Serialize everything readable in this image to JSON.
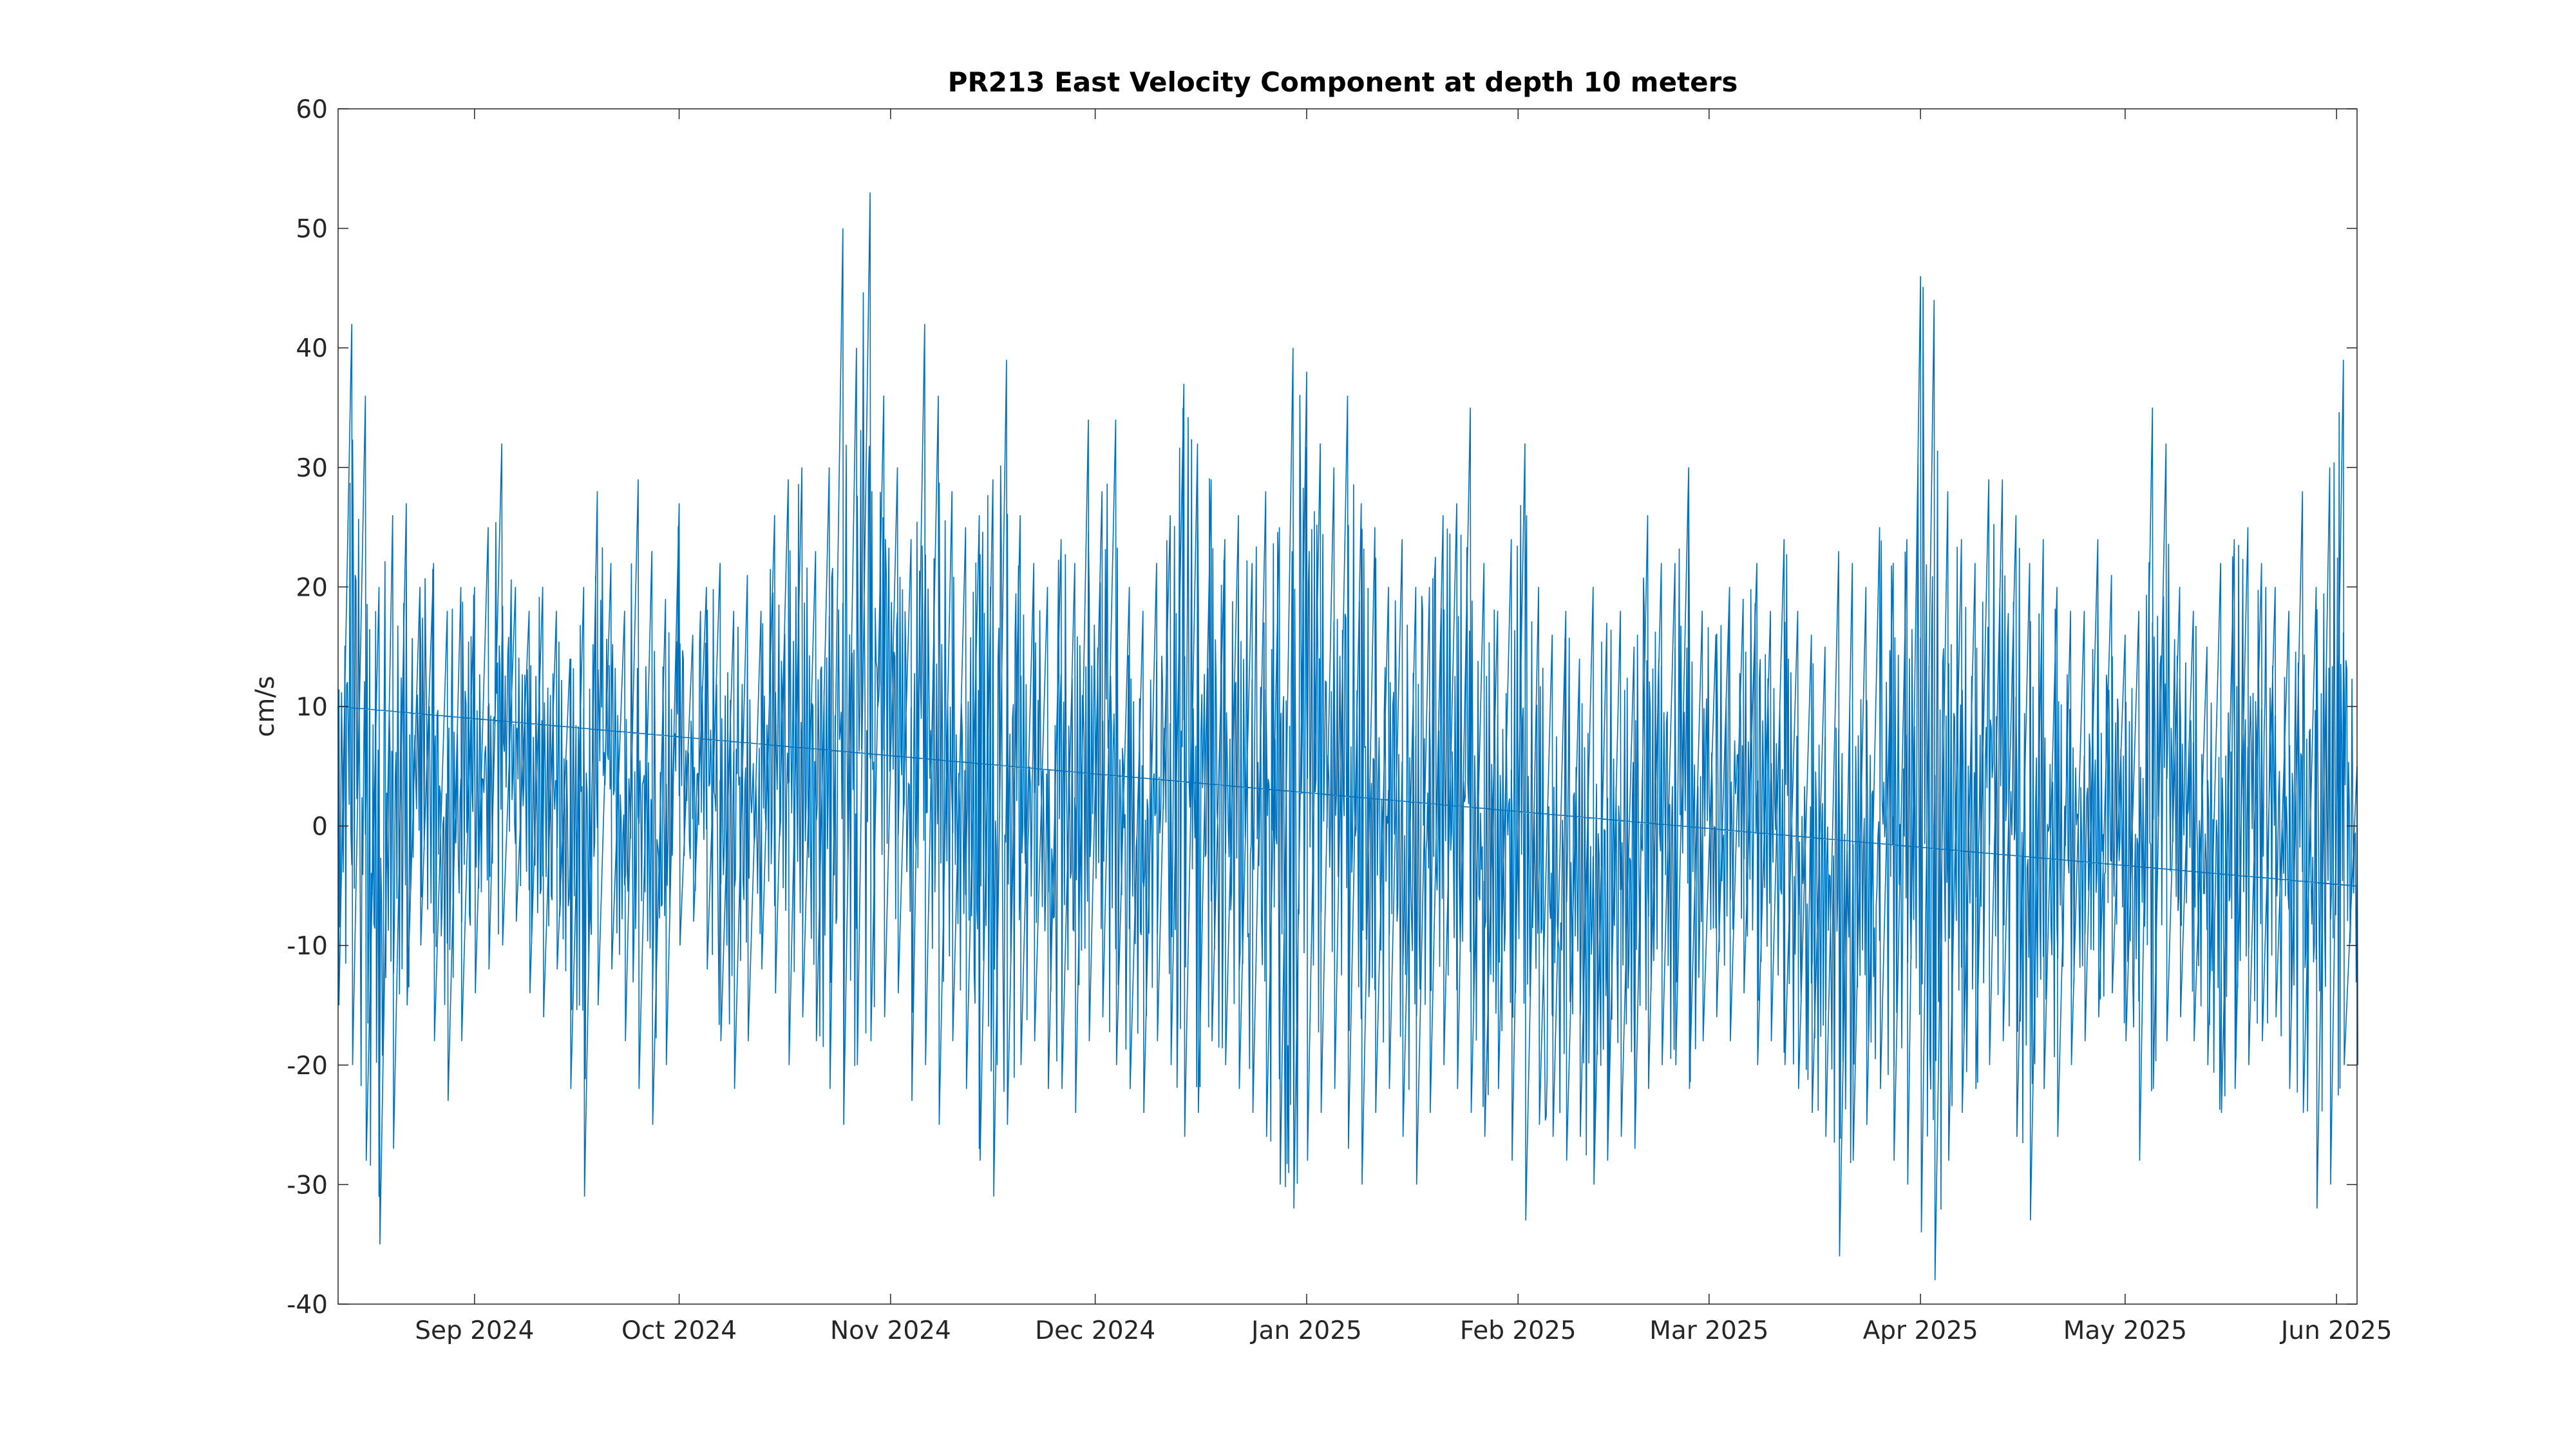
{
  "chart_data": {
    "type": "line",
    "title": "PR213 East Velocity Component at depth 10 meters",
    "xlabel": "",
    "ylabel": "cm/s",
    "ylim": [
      -40,
      60
    ],
    "xlim": [
      "2024-08-12",
      "2025-06-04"
    ],
    "yticks": [
      60,
      50,
      40,
      30,
      20,
      10,
      0,
      -10,
      -20,
      -30,
      -40
    ],
    "xticks": [
      {
        "date": "2024-09-01",
        "label": "Sep 2024"
      },
      {
        "date": "2024-10-01",
        "label": "Oct 2024"
      },
      {
        "date": "2024-11-01",
        "label": "Nov 2024"
      },
      {
        "date": "2024-12-01",
        "label": "Dec 2024"
      },
      {
        "date": "2025-01-01",
        "label": "Jan 2025"
      },
      {
        "date": "2025-02-01",
        "label": "Feb 2025"
      },
      {
        "date": "2025-03-01",
        "label": "Mar 2025"
      },
      {
        "date": "2025-04-01",
        "label": "Apr 2025"
      },
      {
        "date": "2025-05-01",
        "label": "May 2025"
      },
      {
        "date": "2025-06-01",
        "label": "Jun 2025"
      }
    ],
    "grid": false,
    "legend": "none",
    "series": [
      {
        "color": "#0072BD",
        "x": [
          "2024-08-12",
          "2024-08-14",
          "2024-08-16",
          "2024-08-18",
          "2024-08-20",
          "2024-08-22",
          "2024-08-24",
          "2024-08-26",
          "2024-08-28",
          "2024-08-30",
          "2024-09-01",
          "2024-09-03",
          "2024-09-05",
          "2024-09-07",
          "2024-09-09",
          "2024-09-11",
          "2024-09-13",
          "2024-09-15",
          "2024-09-17",
          "2024-09-19",
          "2024-09-21",
          "2024-09-23",
          "2024-09-25",
          "2024-09-27",
          "2024-09-29",
          "2024-10-01",
          "2024-10-03",
          "2024-10-05",
          "2024-10-07",
          "2024-10-09",
          "2024-10-11",
          "2024-10-13",
          "2024-10-15",
          "2024-10-17",
          "2024-10-19",
          "2024-10-21",
          "2024-10-23",
          "2024-10-25",
          "2024-10-27",
          "2024-10-29",
          "2024-10-31",
          "2024-11-02",
          "2024-11-04",
          "2024-11-06",
          "2024-11-08",
          "2024-11-10",
          "2024-11-12",
          "2024-11-14",
          "2024-11-16",
          "2024-11-18",
          "2024-11-20",
          "2024-11-22",
          "2024-11-24",
          "2024-11-26",
          "2024-11-28",
          "2024-11-30",
          "2024-12-02",
          "2024-12-04",
          "2024-12-06",
          "2024-12-08",
          "2024-12-10",
          "2024-12-12",
          "2024-12-14",
          "2024-12-16",
          "2024-12-18",
          "2024-12-20",
          "2024-12-22",
          "2024-12-24",
          "2024-12-26",
          "2024-12-28",
          "2024-12-30",
          "2025-01-01",
          "2025-01-03",
          "2025-01-05",
          "2025-01-07",
          "2025-01-09",
          "2025-01-11",
          "2025-01-13",
          "2025-01-15",
          "2025-01-17",
          "2025-01-19",
          "2025-01-21",
          "2025-01-23",
          "2025-01-25",
          "2025-01-27",
          "2025-01-29",
          "2025-01-31",
          "2025-02-02",
          "2025-02-04",
          "2025-02-06",
          "2025-02-08",
          "2025-02-10",
          "2025-02-12",
          "2025-02-14",
          "2025-02-16",
          "2025-02-18",
          "2025-02-20",
          "2025-02-22",
          "2025-02-24",
          "2025-02-26",
          "2025-02-28",
          "2025-03-02",
          "2025-03-04",
          "2025-03-06",
          "2025-03-08",
          "2025-03-10",
          "2025-03-12",
          "2025-03-14",
          "2025-03-16",
          "2025-03-18",
          "2025-03-20",
          "2025-03-22",
          "2025-03-24",
          "2025-03-26",
          "2025-03-28",
          "2025-03-30",
          "2025-04-01",
          "2025-04-03",
          "2025-04-05",
          "2025-04-07",
          "2025-04-09",
          "2025-04-11",
          "2025-04-13",
          "2025-04-15",
          "2025-04-17",
          "2025-04-19",
          "2025-04-21",
          "2025-04-23",
          "2025-04-25",
          "2025-04-27",
          "2025-04-29",
          "2025-05-01",
          "2025-05-03",
          "2025-05-05",
          "2025-05-07",
          "2025-05-09",
          "2025-05-11",
          "2025-05-13",
          "2025-05-15",
          "2025-05-17",
          "2025-05-19",
          "2025-05-21",
          "2025-05-23",
          "2025-05-25",
          "2025-05-27",
          "2025-05-29",
          "2025-05-31",
          "2025-06-02",
          "2025-06-04"
        ],
        "low": [
          -15,
          -20,
          -28,
          -35,
          -27,
          -15,
          -10,
          -18,
          -23,
          -18,
          -14,
          -12,
          -10,
          -8,
          -14,
          -16,
          -12,
          -22,
          -31,
          -15,
          -12,
          -18,
          -22,
          -25,
          -20,
          -10,
          -8,
          -12,
          -18,
          -22,
          -18,
          -12,
          -14,
          -20,
          -16,
          -18,
          -22,
          -25,
          -20,
          -18,
          -16,
          -14,
          -23,
          -20,
          -25,
          -18,
          -22,
          -28,
          -31,
          -25,
          -20,
          -18,
          -22,
          -22,
          -24,
          -18,
          -16,
          -20,
          -22,
          -24,
          -18,
          -20,
          -26,
          -24,
          -18,
          -20,
          -22,
          -24,
          -26,
          -30,
          -32,
          -28,
          -24,
          -22,
          -27,
          -30,
          -24,
          -22,
          -26,
          -30,
          -24,
          -20,
          -22,
          -24,
          -26,
          -22,
          -28,
          -33,
          -25,
          -26,
          -28,
          -26,
          -30,
          -28,
          -26,
          -27,
          -22,
          -20,
          -20,
          -22,
          -18,
          -16,
          -18,
          -14,
          -20,
          -18,
          -20,
          -22,
          -24,
          -26,
          -36,
          -28,
          -25,
          -22,
          -28,
          -30,
          -34,
          -38,
          -28,
          -24,
          -22,
          -20,
          -18,
          -26,
          -33,
          -22,
          -26,
          -20,
          -18,
          -16,
          -14,
          -18,
          -28,
          -22,
          -18,
          -16,
          -18,
          -20,
          -24,
          -22,
          -20,
          -18,
          -16,
          -22,
          -24,
          -32,
          -30,
          -20,
          -20
        ],
        "high": [
          10,
          42,
          36,
          20,
          26,
          27,
          20,
          22,
          18,
          20,
          20,
          25,
          32,
          20,
          18,
          20,
          18,
          14,
          20,
          28,
          22,
          18,
          29,
          23,
          19,
          27,
          16,
          20,
          22,
          18,
          21,
          18,
          26,
          29,
          30,
          23,
          30,
          50,
          40,
          53,
          36,
          30,
          24,
          42,
          36,
          28,
          25,
          26,
          29,
          39,
          26,
          22,
          20,
          24,
          22,
          34,
          28,
          34,
          20,
          18,
          22,
          26,
          37,
          32,
          29,
          24,
          26,
          22,
          28,
          25,
          40,
          38,
          32,
          30,
          36,
          27,
          25,
          20,
          24,
          20,
          20,
          26,
          27,
          35,
          22,
          18,
          24,
          32,
          20,
          16,
          18,
          14,
          20,
          17,
          18,
          15,
          26,
          22,
          22,
          30,
          18,
          16,
          20,
          19,
          22,
          18,
          24,
          18,
          16,
          15,
          23,
          22,
          20,
          25,
          22,
          24,
          46,
          44,
          28,
          24,
          22,
          29,
          29,
          26,
          22,
          24,
          20,
          18,
          18,
          24,
          21,
          16,
          18,
          35,
          32,
          20,
          18,
          15,
          22,
          24,
          25,
          22,
          20,
          18,
          28,
          20,
          30,
          39,
          5
        ]
      }
    ]
  }
}
